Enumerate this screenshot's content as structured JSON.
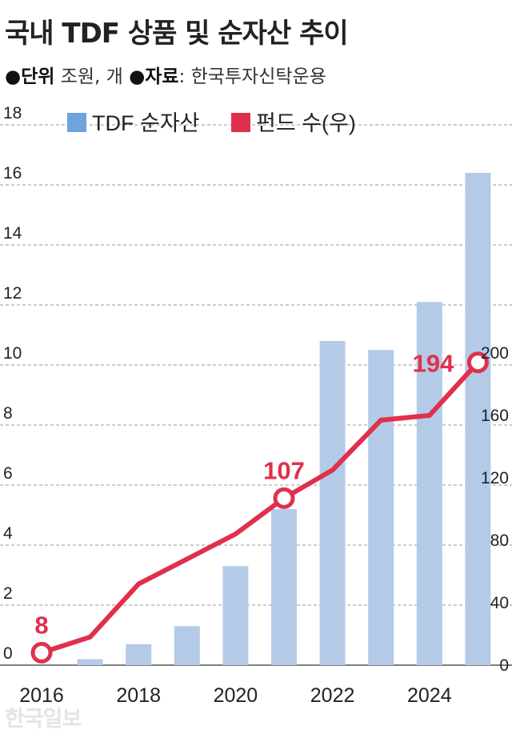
{
  "header": {
    "title": "국내 TDF 상품 및 순자산 추이",
    "unit_label": "●단위",
    "unit_value": "조원, 개",
    "source_label": "●자료",
    "source_value": ": 한국투자신탁운용"
  },
  "watermark": "한국일보",
  "colors": {
    "bar": "#b4cbe8",
    "legend_bar": "#6fa3dc",
    "line": "#e0304c",
    "grid": "#9a9a9a",
    "text": "#222222"
  },
  "chart_data": {
    "type": "bar+line",
    "x": [
      2016,
      2017,
      2018,
      2019,
      2020,
      2021,
      2022,
      2023,
      2024,
      2025
    ],
    "x_tick_labels": [
      "2016",
      "2018",
      "2020",
      "2022",
      "2024"
    ],
    "x_tick_values": [
      2016,
      2018,
      2020,
      2022,
      2024
    ],
    "y_left": {
      "ticks": [
        "0",
        "2",
        "4",
        "6",
        "8",
        "10",
        "12",
        "14",
        "16",
        "18"
      ],
      "range": [
        0,
        18
      ]
    },
    "y_right": {
      "ticks": [
        "0",
        "40",
        "80",
        "120",
        "160",
        "200"
      ],
      "range": [
        0,
        200
      ]
    },
    "series": [
      {
        "name": "TDF 순자산",
        "type": "bar",
        "axis": "left",
        "values": [
          0.0,
          0.2,
          0.7,
          1.3,
          3.3,
          5.2,
          10.8,
          10.5,
          12.1,
          16.4
        ]
      },
      {
        "name": "펀드 수(우)",
        "type": "line",
        "axis": "right",
        "values": [
          8,
          18,
          52,
          68,
          84,
          107,
          125,
          157,
          160,
          194
        ],
        "labels": {
          "0": "8",
          "5": "107",
          "9": "194"
        }
      }
    ],
    "grid": true,
    "legend": "top"
  }
}
